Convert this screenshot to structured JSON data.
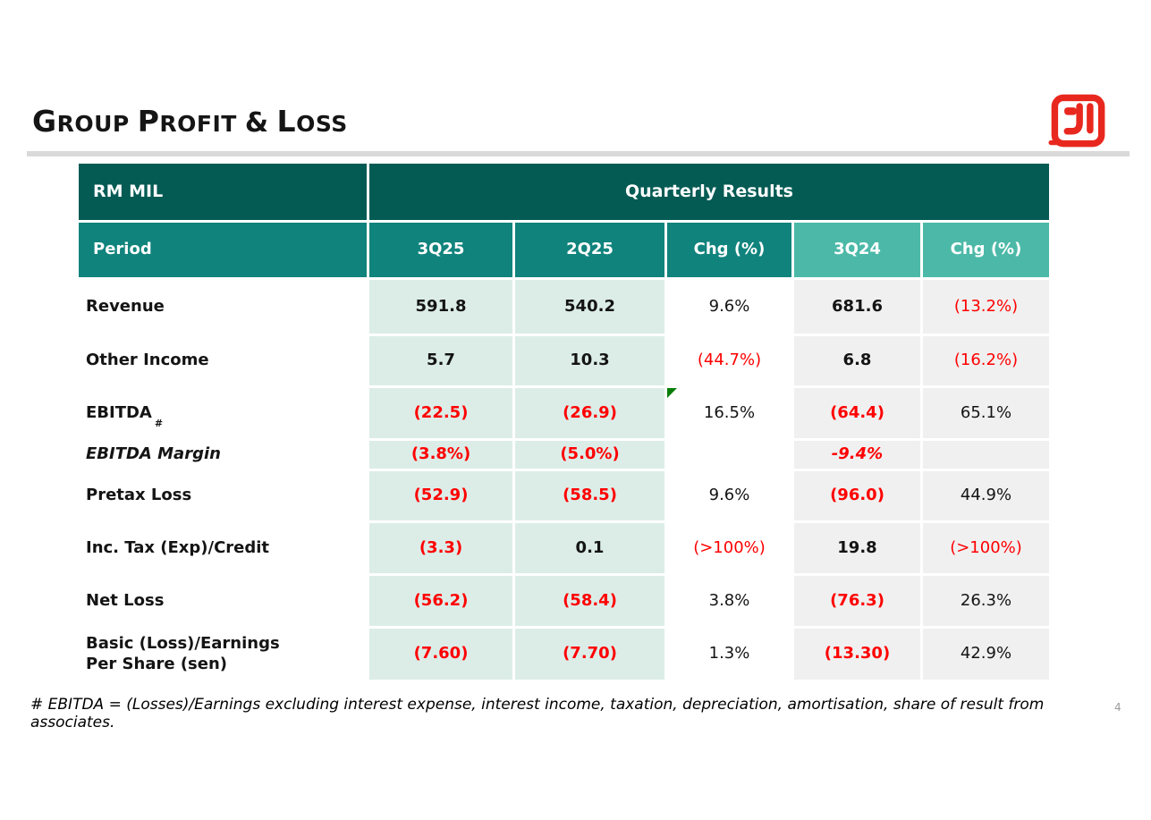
{
  "header": {
    "title": "Group Profit & Loss"
  },
  "logo": {
    "name": "company-logo",
    "color": "#E8281E"
  },
  "colors": {
    "teal_dark": "#045B54",
    "teal_mid": "#10837C",
    "teal_light": "#4CB9A8",
    "mint": "#DCEDE8",
    "cell_gray": "#F0F0F0",
    "negative": "#FF0000",
    "rule_gray": "#D9D9D9",
    "logo_red": "#E8281E",
    "marker_green": "#077D07"
  },
  "table": {
    "unit_label": "RM MIL",
    "group_header": "Quarterly Results",
    "columns": [
      "Period",
      "3Q25",
      "2Q25",
      "Chg (%)",
      "3Q24",
      "Chg (%)"
    ],
    "rows": [
      {
        "label": "Revenue",
        "cells": [
          "591.8",
          "540.2",
          "9.6%",
          "681.6",
          "(13.2%)"
        ]
      },
      {
        "label": "Other Income",
        "cells": [
          "5.7",
          "10.3",
          "(44.7%)",
          "6.8",
          "(16.2%)"
        ]
      },
      {
        "label": "EBITDA",
        "label_suffix": "#",
        "marker_col": 2,
        "cells": [
          "(22.5)",
          "(26.9)",
          "16.5%",
          "(64.4)",
          "65.1%"
        ]
      },
      {
        "label": "EBITDA Margin",
        "italic": true,
        "italic_cells": [
          3
        ],
        "cells": [
          "(3.8%)",
          "(5.0%)",
          "",
          "-9.4%",
          ""
        ]
      },
      {
        "label": "Pretax Loss",
        "cells": [
          "(52.9)",
          "(58.5)",
          "9.6%",
          "(96.0)",
          "44.9%"
        ]
      },
      {
        "label": "Inc. Tax (Exp)/Credit",
        "cells": [
          "(3.3)",
          "0.1",
          "(>100%)",
          "19.8",
          "(>100%)"
        ]
      },
      {
        "label": "Net Loss",
        "cells": [
          "(56.2)",
          "(58.4)",
          "3.8%",
          "(76.3)",
          "26.3%"
        ]
      },
      {
        "label": "Basic (Loss)/Earnings\nPer Share (sen)",
        "cells": [
          "(7.60)",
          "(7.70)",
          "1.3%",
          "(13.30)",
          "42.9%"
        ]
      }
    ]
  },
  "footnote": "# EBITDA = (Losses)/Earnings excluding interest expense, interest income, taxation, depreciation, amortisation, share of result from associates.",
  "page": {
    "number": "4"
  }
}
